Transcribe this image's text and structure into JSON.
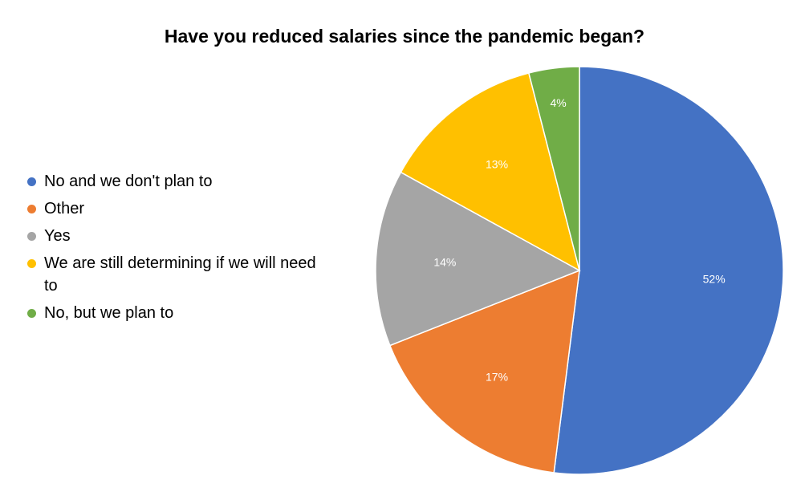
{
  "chart_data": {
    "type": "pie",
    "title": "Have you reduced salaries since the pandemic began?",
    "legend_position": "left",
    "categories": [
      "No and we don't plan to",
      "Other",
      "Yes",
      "We are still determining if we will need to",
      "No, but we plan to"
    ],
    "values": [
      52,
      17,
      14,
      13,
      4
    ],
    "data_labels": [
      "52%",
      "17%",
      "14%",
      "13%",
      "4%"
    ],
    "colors": [
      "#4472C4",
      "#ED7D31",
      "#A5A5A5",
      "#FFC000",
      "#70AD47"
    ]
  }
}
